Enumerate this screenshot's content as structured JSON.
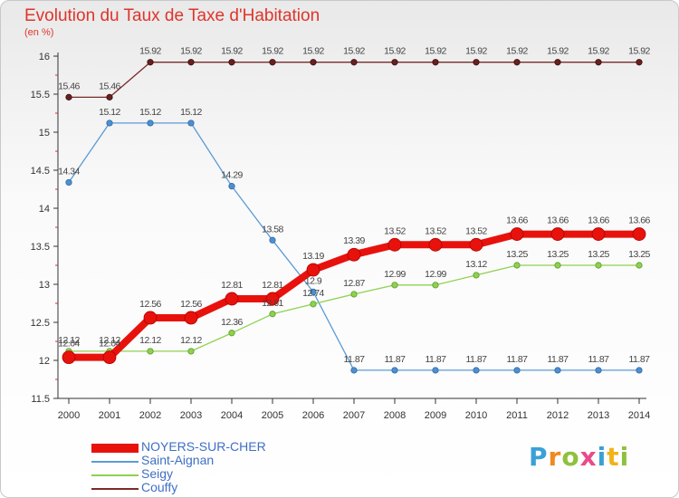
{
  "chart_data": {
    "type": "line",
    "title": "Evolution du Taux de Taxe d'Habitation",
    "unit_label": "(en %)",
    "x": [
      "2000",
      "2001",
      "2002",
      "2003",
      "2004",
      "2005",
      "2006",
      "2007",
      "2008",
      "2009",
      "2010",
      "2011",
      "2012",
      "2013",
      "2014"
    ],
    "ylim": [
      11.5,
      16
    ],
    "yticks": [
      "11.5",
      "12",
      "12.5",
      "13",
      "13.5",
      "14",
      "14.5",
      "15",
      "15.5",
      "16"
    ],
    "series": [
      {
        "name": "NOYERS-SUR-CHER",
        "color": "#e8120c",
        "values": [
          12.04,
          12.04,
          12.56,
          12.56,
          12.81,
          12.81,
          13.19,
          13.39,
          13.52,
          13.52,
          13.52,
          13.66,
          13.66,
          13.66,
          13.66
        ],
        "labels": [
          "12.04",
          "12.04",
          "12.56",
          "12.56",
          "12.81",
          "12.81",
          "13.19",
          "13.39",
          "13.52",
          "13.52",
          "13.52",
          "13.66",
          "13.66",
          "13.66",
          "13.66"
        ]
      },
      {
        "name": "Saint-Aignan",
        "color": "#5b9bd5",
        "values": [
          14.34,
          15.12,
          15.12,
          15.12,
          14.29,
          13.58,
          12.9,
          11.87,
          11.87,
          11.87,
          11.87,
          11.87,
          11.87,
          11.87,
          11.87
        ],
        "labels": [
          "14.34",
          "15.12",
          "15.12",
          "15.12",
          "14.29",
          "13.58",
          "12.9",
          "11.87",
          "11.87",
          "11.87",
          "11.87",
          "11.87",
          "11.87",
          "11.87",
          "11.87"
        ]
      },
      {
        "name": "Seigy",
        "color": "#8fd14f",
        "values": [
          12.12,
          12.12,
          12.12,
          12.12,
          12.36,
          12.61,
          12.74,
          12.87,
          12.99,
          12.99,
          13.12,
          13.25,
          13.25,
          13.25,
          13.25
        ],
        "labels": [
          "12.12",
          "12.12",
          "12.12",
          "12.12",
          "12.36",
          "12.61",
          "12.74",
          "12.87",
          "12.99",
          "12.99",
          "13.12",
          "13.25",
          "13.25",
          "13.25",
          "13.25"
        ]
      },
      {
        "name": "Couffy",
        "color": "#7b2a2a",
        "values": [
          15.46,
          15.46,
          15.92,
          15.92,
          15.92,
          15.92,
          15.92,
          15.92,
          15.92,
          15.92,
          15.92,
          15.92,
          15.92,
          15.92,
          15.92
        ],
        "labels": [
          "15.46",
          "15.46",
          "15.92",
          "15.92",
          "15.92",
          "15.92",
          "15.92",
          "15.92",
          "15.92",
          "15.92",
          "15.92",
          "15.92",
          "15.92",
          "15.92",
          "15.92"
        ]
      }
    ]
  },
  "logo": {
    "text": "Proxiti",
    "letter_colors": [
      "#3aa0d8",
      "#f08a1e",
      "#8fc13d",
      "#e84b8a",
      "#3aa0d8",
      "#f2b21b",
      "#8fc13d"
    ]
  }
}
